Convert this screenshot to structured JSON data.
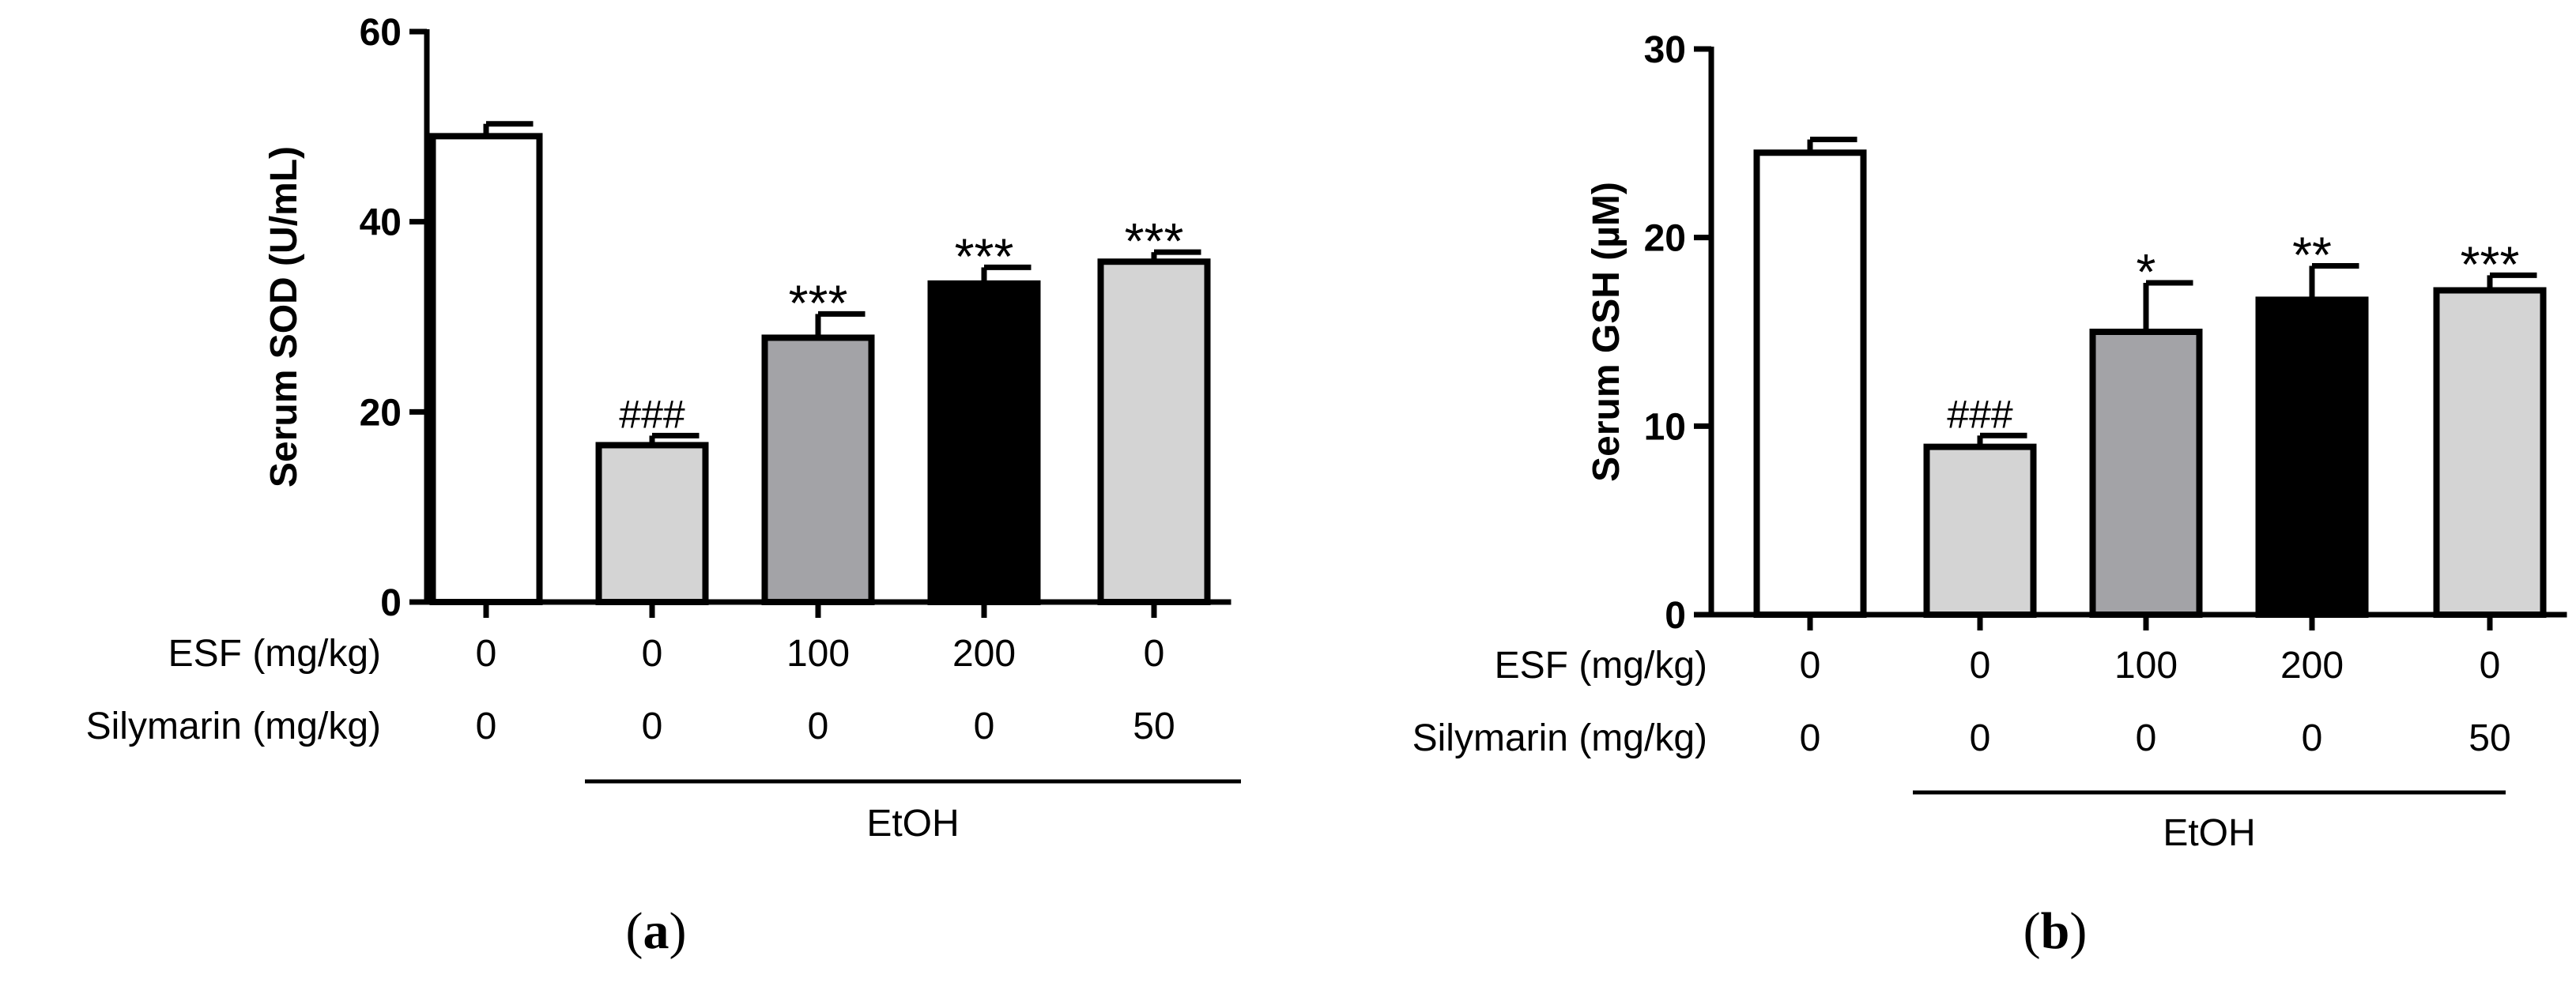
{
  "chart_data": [
    {
      "type": "bar",
      "panel_label": "(a)",
      "panel_letter": "a",
      "ylabel": "Serum SOD (U/mL)",
      "ylim": [
        0,
        60
      ],
      "yticks": [
        "0",
        "20",
        "40",
        "60"
      ],
      "ytick_values": [
        0,
        20,
        40,
        60
      ],
      "values": [
        49,
        16.5,
        27.8,
        33.5,
        35.8
      ],
      "errors": [
        1.3,
        1.0,
        2.5,
        1.7,
        1.0
      ],
      "fills": [
        "#ffffff",
        "#d4d4d4",
        "#a3a3a7",
        "#000000",
        "#d4d4d4"
      ],
      "annotations": [
        "",
        "###",
        "***",
        "***",
        "***"
      ],
      "row1_label": "ESF (mg/kg)",
      "row1_values": [
        "0",
        "0",
        "100",
        "200",
        "0"
      ],
      "row2_label": "Silymarin (mg/kg)",
      "row2_values": [
        "0",
        "0",
        "0",
        "0",
        "50"
      ],
      "group_label": "EtOH"
    },
    {
      "type": "bar",
      "panel_label": "(b)",
      "panel_letter": "b",
      "ylabel": "Serum GSH (µM)",
      "ylim": [
        0,
        30
      ],
      "yticks": [
        "0",
        "10",
        "20",
        "30"
      ],
      "ytick_values": [
        0,
        10,
        20,
        30
      ],
      "values": [
        24.5,
        8.9,
        15.0,
        16.7,
        17.2
      ],
      "errors": [
        0.7,
        0.6,
        2.6,
        1.8,
        0.8
      ],
      "fills": [
        "#ffffff",
        "#d4d4d4",
        "#a3a3a7",
        "#000000",
        "#d4d4d4"
      ],
      "annotations": [
        "",
        "###",
        "*",
        "**",
        "***"
      ],
      "row1_label": "ESF (mg/kg)",
      "row1_values": [
        "0",
        "0",
        "100",
        "200",
        "0"
      ],
      "row2_label": "Silymarin (mg/kg)",
      "row2_values": [
        "0",
        "0",
        "0",
        "0",
        "50"
      ],
      "group_label": "EtOH"
    }
  ]
}
